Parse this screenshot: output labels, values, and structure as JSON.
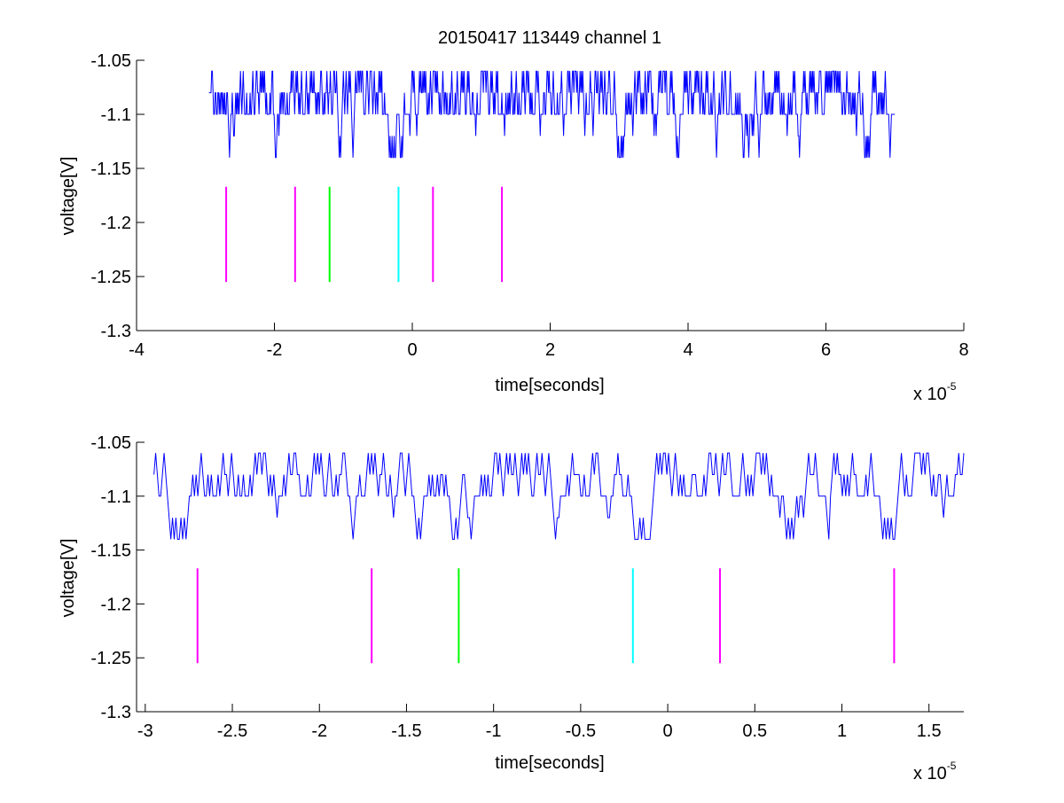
{
  "figure": {
    "title": "20150417 113449 channel 1"
  },
  "colors": {
    "trace": "#0000ff",
    "magenta": "#ff00ff",
    "green": "#00ff00",
    "cyan": "#00ffff",
    "axis": "#000000"
  },
  "chart_data": [
    {
      "type": "line",
      "panel": "top",
      "title": "20150417 113449 channel 1",
      "xlabel": "time[seconds]",
      "ylabel": "voltage[V]",
      "x_multiplier_label": "x 10",
      "x_multiplier_exp": "-5",
      "xlim": [
        -4,
        8
      ],
      "ylim": [
        -1.3,
        -1.05
      ],
      "xticks": [
        -4,
        -2,
        0,
        2,
        4,
        6,
        8
      ],
      "xtick_labels": [
        "-4",
        "-2",
        "0",
        "2",
        "4",
        "6",
        "8"
      ],
      "yticks": [
        -1.05,
        -1.1,
        -1.15,
        -1.2,
        -1.25,
        -1.3
      ],
      "ytick_labels": [
        "-1.05",
        "-1.1",
        "-1.15",
        "-1.2",
        "-1.25",
        "-1.3"
      ],
      "grid": false,
      "trace": {
        "x_start": -2.95,
        "x_end": 7.0,
        "levels": [
          -1.06,
          -1.08,
          -1.1,
          -1.12,
          -1.14
        ],
        "seed": 7,
        "samples": 1000
      },
      "markers": [
        {
          "x": -2.7,
          "y_range": [
            -1.255,
            -1.167
          ],
          "color": "magenta"
        },
        {
          "x": -1.7,
          "y_range": [
            -1.255,
            -1.167
          ],
          "color": "magenta"
        },
        {
          "x": -1.2,
          "y_range": [
            -1.255,
            -1.167
          ],
          "color": "green"
        },
        {
          "x": -0.2,
          "y_range": [
            -1.255,
            -1.167
          ],
          "color": "cyan"
        },
        {
          "x": 0.3,
          "y_range": [
            -1.255,
            -1.167
          ],
          "color": "magenta"
        },
        {
          "x": 1.3,
          "y_range": [
            -1.255,
            -1.167
          ],
          "color": "magenta"
        }
      ]
    },
    {
      "type": "line",
      "panel": "bottom",
      "xlabel": "time[seconds]",
      "ylabel": "voltage[V]",
      "x_multiplier_label": "x 10",
      "x_multiplier_exp": "-5",
      "xlim": [
        -3.05,
        1.7
      ],
      "ylim": [
        -1.3,
        -1.05
      ],
      "xticks": [
        -3,
        -2.5,
        -2,
        -1.5,
        -1,
        -0.5,
        0,
        0.5,
        1,
        1.5
      ],
      "xtick_labels": [
        "-3",
        "-2.5",
        "-2",
        "-1.5",
        "-1",
        "-0.5",
        "0",
        "0.5",
        "1",
        "1.5"
      ],
      "yticks": [
        -1.05,
        -1.1,
        -1.15,
        -1.2,
        -1.25,
        -1.3
      ],
      "ytick_labels": [
        "-1.05",
        "-1.1",
        "-1.15",
        "-1.2",
        "-1.25",
        "-1.3"
      ],
      "grid": false,
      "trace": {
        "x_start": -2.95,
        "x_end": 1.7,
        "levels": [
          -1.06,
          -1.08,
          -1.1,
          -1.12,
          -1.14
        ],
        "seed": 11,
        "samples": 480
      },
      "markers": [
        {
          "x": -2.7,
          "y_range": [
            -1.255,
            -1.167
          ],
          "color": "magenta"
        },
        {
          "x": -1.7,
          "y_range": [
            -1.255,
            -1.167
          ],
          "color": "magenta"
        },
        {
          "x": -1.2,
          "y_range": [
            -1.255,
            -1.167
          ],
          "color": "green"
        },
        {
          "x": -0.2,
          "y_range": [
            -1.255,
            -1.167
          ],
          "color": "cyan"
        },
        {
          "x": 0.3,
          "y_range": [
            -1.255,
            -1.167
          ],
          "color": "magenta"
        },
        {
          "x": 1.3,
          "y_range": [
            -1.255,
            -1.167
          ],
          "color": "magenta"
        }
      ]
    }
  ]
}
